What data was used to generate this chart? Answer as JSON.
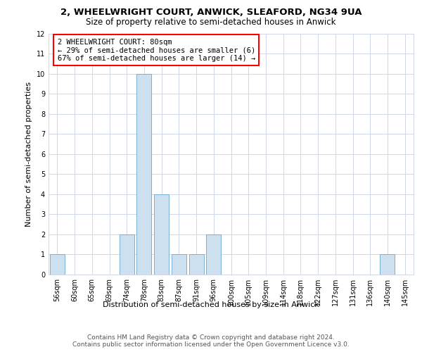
{
  "title_line1": "2, WHEELWRIGHT COURT, ANWICK, SLEAFORD, NG34 9UA",
  "title_line2": "Size of property relative to semi-detached houses in Anwick",
  "xlabel": "Distribution of semi-detached houses by size in Anwick",
  "ylabel": "Number of semi-detached properties",
  "categories": [
    "56sqm",
    "60sqm",
    "65sqm",
    "69sqm",
    "74sqm",
    "78sqm",
    "83sqm",
    "87sqm",
    "91sqm",
    "96sqm",
    "100sqm",
    "105sqm",
    "109sqm",
    "114sqm",
    "118sqm",
    "122sqm",
    "127sqm",
    "131sqm",
    "136sqm",
    "140sqm",
    "145sqm"
  ],
  "values": [
    1,
    0,
    0,
    0,
    2,
    10,
    4,
    1,
    1,
    2,
    0,
    0,
    0,
    0,
    0,
    0,
    0,
    0,
    0,
    1,
    0
  ],
  "bar_color": "#cce0f0",
  "bar_edge_color": "#7ab0d4",
  "ylim": [
    0,
    12
  ],
  "yticks": [
    0,
    1,
    2,
    3,
    4,
    5,
    6,
    7,
    8,
    9,
    10,
    11,
    12
  ],
  "annotation_box_text": "2 WHEELWRIGHT COURT: 80sqm\n← 29% of semi-detached houses are smaller (6)\n67% of semi-detached houses are larger (14) →",
  "footer_line1": "Contains HM Land Registry data © Crown copyright and database right 2024.",
  "footer_line2": "Contains public sector information licensed under the Open Government Licence v3.0.",
  "background_color": "#ffffff",
  "grid_color": "#d0d8e8",
  "title_fontsize": 9.5,
  "subtitle_fontsize": 8.5,
  "axis_label_fontsize": 8,
  "tick_fontsize": 7,
  "annotation_fontsize": 7.5,
  "footer_fontsize": 6.5
}
